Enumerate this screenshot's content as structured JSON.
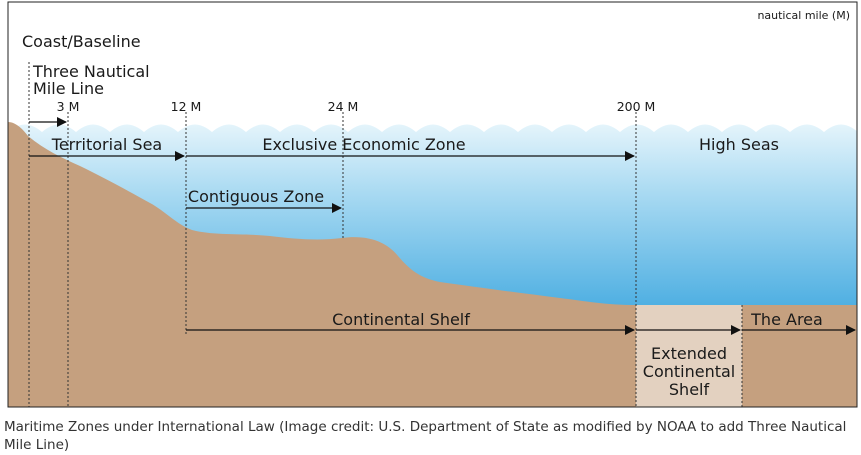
{
  "unit_label": "nautical mile (M)",
  "labels": {
    "coast_baseline": "Coast/Baseline",
    "three_nm_line_1": "Three Nautical",
    "three_nm_line_2": "Mile Line",
    "tick_3": "3 M",
    "tick_12": "12 M",
    "tick_24": "24 M",
    "tick_200": "200 M",
    "territorial_sea": "Territorial Sea",
    "eez": "Exclusive Economic Zone",
    "high_seas": "High Seas",
    "contiguous_zone": "Contiguous Zone",
    "continental_shelf": "Continental Shelf",
    "the_area": "The Area",
    "extended_shelf_1": "Extended",
    "extended_shelf_2": "Continental",
    "extended_shelf_3": "Shelf"
  },
  "caption": "Maritime Zones under International Law (Image credit: U.S. Department of State as modified by NOAA to add Three Nautical Mile Line)",
  "colors": {
    "land": "#c5a07f",
    "extended_shelf": "#e3d1c0",
    "water_top": "#d6eef8",
    "water_bottom": "#4aaee2",
    "border": "#222222"
  }
}
